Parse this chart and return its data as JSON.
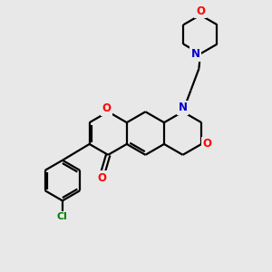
{
  "background_color": "#e8e8e8",
  "bond_color": "#000000",
  "bond_width": 1.6,
  "atom_colors": {
    "O": "#ff0000",
    "N": "#0000cc",
    "Cl": "#008000"
  },
  "fig_size": [
    3.0,
    3.0
  ],
  "dpi": 100,
  "xlim": [
    0,
    10
  ],
  "ylim": [
    0,
    10
  ]
}
